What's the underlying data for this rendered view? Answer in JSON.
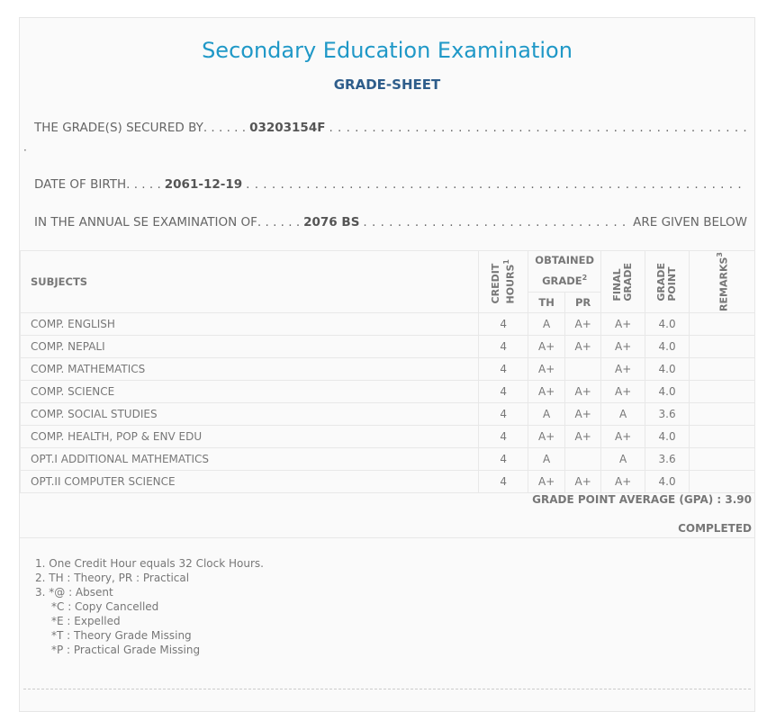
{
  "header": {
    "title": "Secondary Education Examination",
    "subtitle": "GRADE-SHEET"
  },
  "info": {
    "secured_by_label": "THE GRADE(S) SECURED BY",
    "secured_by_value": "03203154F",
    "dob_label": "DATE OF BIRTH",
    "dob_value": "2061-12-19",
    "exam_label": "IN THE ANNUAL SE EXAMINATION OF",
    "exam_value": "2076 BS",
    "exam_suffix": "ARE GIVEN BELOW"
  },
  "table": {
    "headers": {
      "subjects": "SUBJECTS",
      "credit_hours": "CREDIT\nHOURS",
      "credit_sup": "1",
      "obtained": "OBTAINED GRADE",
      "obtained_sup": "2",
      "th": "TH",
      "pr": "PR",
      "final_grade": "FINAL\nGRADE",
      "grade_point": "GRADE\nPOINT",
      "remarks": "REMARKS",
      "remarks_sup": "3"
    },
    "rows": [
      {
        "subject": "COMP. ENGLISH",
        "credit": "4",
        "th": "A",
        "pr": "A+",
        "final": "A+",
        "gp": "4.0",
        "remarks": ""
      },
      {
        "subject": "COMP. NEPALI",
        "credit": "4",
        "th": "A+",
        "pr": "A+",
        "final": "A+",
        "gp": "4.0",
        "remarks": ""
      },
      {
        "subject": "COMP. MATHEMATICS",
        "credit": "4",
        "th": "A+",
        "pr": "",
        "final": "A+",
        "gp": "4.0",
        "remarks": ""
      },
      {
        "subject": "COMP. SCIENCE",
        "credit": "4",
        "th": "A+",
        "pr": "A+",
        "final": "A+",
        "gp": "4.0",
        "remarks": ""
      },
      {
        "subject": "COMP. SOCIAL STUDIES",
        "credit": "4",
        "th": "A",
        "pr": "A+",
        "final": "A",
        "gp": "3.6",
        "remarks": ""
      },
      {
        "subject": "COMP. HEALTH, POP & ENV EDU",
        "credit": "4",
        "th": "A+",
        "pr": "A+",
        "final": "A+",
        "gp": "4.0",
        "remarks": ""
      },
      {
        "subject": "OPT.I ADDITIONAL MATHEMATICS",
        "credit": "4",
        "th": "A",
        "pr": "",
        "final": "A",
        "gp": "3.6",
        "remarks": ""
      },
      {
        "subject": "OPT.II COMPUTER SCIENCE",
        "credit": "4",
        "th": "A+",
        "pr": "A+",
        "final": "A+",
        "gp": "4.0",
        "remarks": ""
      }
    ]
  },
  "summary": {
    "gpa": "GRADE POINT AVERAGE (GPA) : 3.90",
    "status": "COMPLETED"
  },
  "notes": [
    "1. One Credit Hour equals 32 Clock Hours.",
    "2. TH : Theory, PR : Practical",
    "3. *@ : Absent"
  ],
  "notes_indented": [
    "*C : Copy Cancelled",
    "*E : Expelled",
    "*T : Theory Grade Missing",
    "*P : Practical Grade Missing"
  ],
  "colors": {
    "title": "#1f98c7",
    "subtitle": "#2e5d8b",
    "text": "#666666",
    "border": "#e8e8e8"
  }
}
